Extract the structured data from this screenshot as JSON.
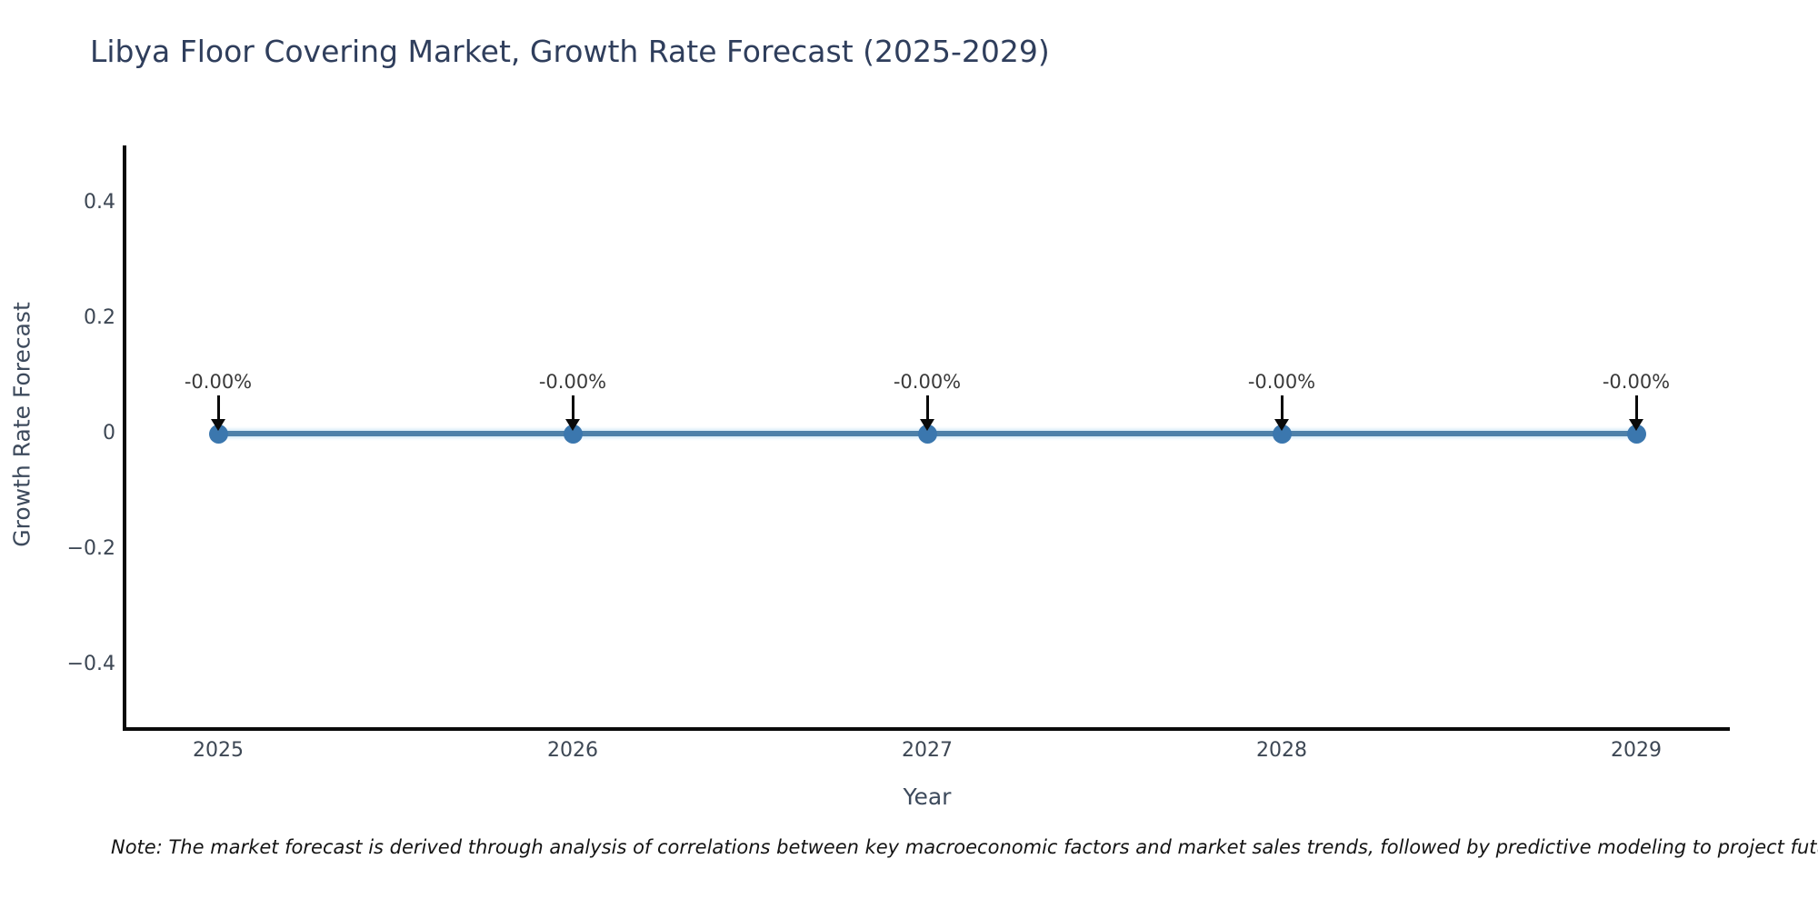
{
  "header": {
    "title": "Libya Floor Covering Market, Growth Rate Forecast (2025-2029)"
  },
  "chart_data": {
    "type": "line",
    "title": "Libya Floor Covering Market, Growth Rate Forecast (2025-2029)",
    "xlabel": "Year",
    "ylabel": "Growth Rate Forecast",
    "categories": [
      "2025",
      "2026",
      "2027",
      "2028",
      "2029"
    ],
    "series": [
      {
        "name": "Growth Rate Forecast",
        "values": [
          0,
          0,
          0,
          0,
          0
        ],
        "point_labels": [
          "-0.00%",
          "-0.00%",
          "-0.00%",
          "-0.00%",
          "-0.00%"
        ]
      }
    ],
    "yticks": [
      0.4,
      0.2,
      0,
      -0.2,
      -0.4
    ],
    "ytick_labels": [
      "0.4",
      "0.2",
      "0",
      "−0.2",
      "−0.4"
    ],
    "ylim": [
      -0.51,
      0.5
    ],
    "grid": false,
    "legend": "none",
    "annotation_arrows": true,
    "colors": {
      "line": "#4d80a9",
      "marker": "#3b77ae",
      "arrow": "#0a0a0a",
      "spine": "#0a0a0a"
    }
  },
  "note": {
    "text": "Note: The market forecast is derived through analysis of correlations between key macroeconomic factors and market sales trends, followed by predictive modeling to project future sales"
  },
  "colors": {
    "background": "#ffffff",
    "title_text": "#2f3e5c",
    "axis_text": "#3d4a5c",
    "tick_text": "#3d4754",
    "point_label_text": "#3a3a3a"
  }
}
